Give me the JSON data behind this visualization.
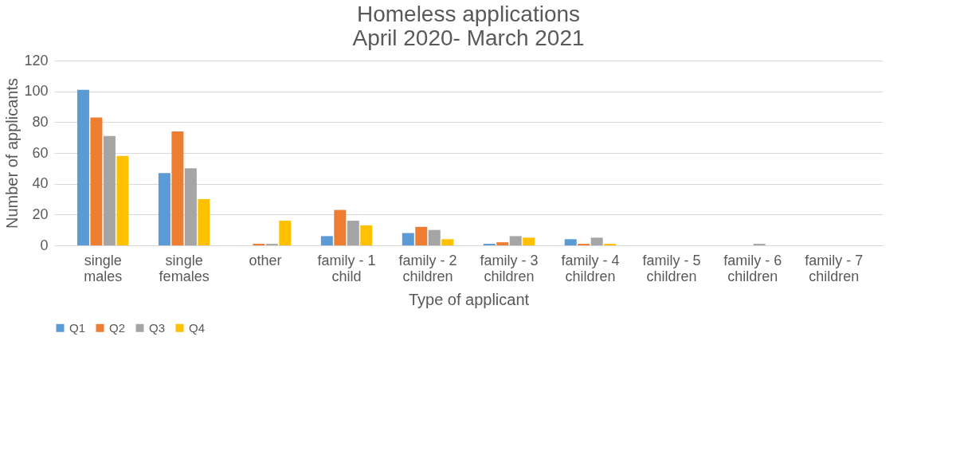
{
  "chart_data": {
    "type": "bar",
    "title": [
      "Homeless applications",
      "April 2020- March 2021"
    ],
    "xlabel": "Type of applicant",
    "ylabel": "Number of applicants",
    "categories": [
      "single males",
      "single females",
      "other",
      "family - 1 child",
      "family - 2 children",
      "family - 3 children",
      "family - 4 children",
      "family - 5 children",
      "family - 6 children",
      "family - 7 children"
    ],
    "series": [
      {
        "name": "Q1",
        "color": "#5b9bd5",
        "values": [
          101,
          47,
          0,
          6,
          8,
          1,
          4,
          0,
          0,
          0
        ]
      },
      {
        "name": "Q2",
        "color": "#ed7d31",
        "values": [
          83,
          74,
          1,
          23,
          12,
          2,
          1,
          0,
          0,
          0
        ]
      },
      {
        "name": "Q3",
        "color": "#a5a5a5",
        "values": [
          71,
          50,
          1,
          16,
          10,
          6,
          5,
          0,
          1,
          0
        ]
      },
      {
        "name": "Q4",
        "color": "#ffc000",
        "values": [
          58,
          30,
          16,
          13,
          4,
          5,
          1,
          0,
          0,
          0
        ]
      }
    ],
    "ylim": [
      0,
      120
    ],
    "yticks": [
      0,
      20,
      40,
      60,
      80,
      100,
      120
    ],
    "grid": "y",
    "legend": "bottom"
  }
}
